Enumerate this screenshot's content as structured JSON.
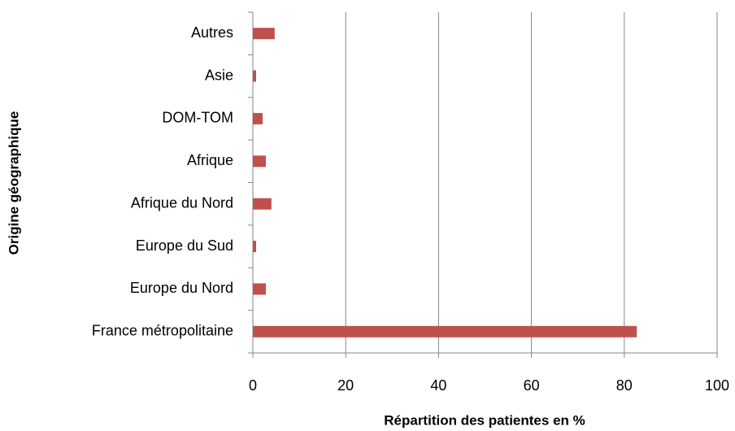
{
  "chart_data": {
    "type": "barh",
    "xlabel": "Répartition des patientes en %",
    "ylabel": "Origine géographique",
    "categories": [
      "France métropolitaine",
      "Europe du Nord",
      "Europe du Sud",
      "Afrique du Nord",
      "Afrique",
      "DOM-TOM",
      "Asie",
      "Autres"
    ],
    "values": [
      82.7,
      2.8,
      0.7,
      4.0,
      2.8,
      2.1,
      0.7,
      4.7
    ],
    "color": "#c0504d",
    "xlim": [
      0,
      100
    ],
    "xticks": [
      0,
      20,
      40,
      60,
      80,
      100
    ],
    "grid": true
  }
}
